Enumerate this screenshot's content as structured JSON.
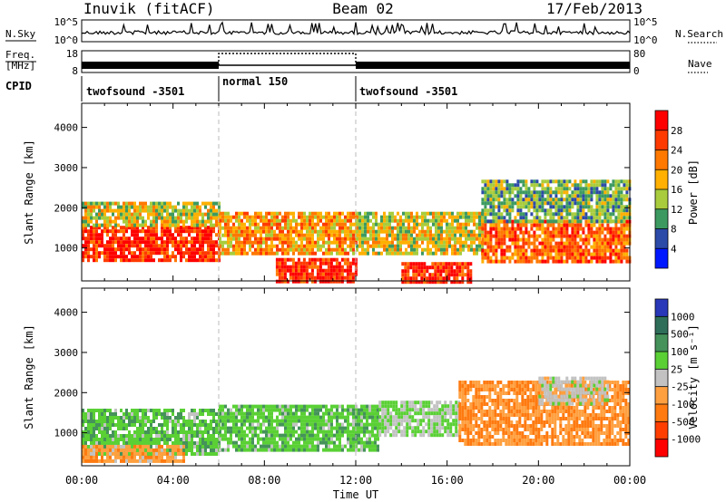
{
  "header": {
    "station": "Inuvik (fitACF)",
    "beam": "Beam 02",
    "date": "17/Feb/2013"
  },
  "panels": {
    "nsky": {
      "label": "N.Sky",
      "right_label": "N.Search",
      "ticks_left": [
        "10^5",
        "10^0"
      ],
      "ticks_right": [
        "10^5",
        "10^0"
      ]
    },
    "freq": {
      "label_line1": "Freq.",
      "label_line2": "[MHz]",
      "right_label": "Nave",
      "ticks_left": [
        "18",
        "8"
      ],
      "ticks_right": [
        "80",
        "0"
      ]
    },
    "cpid": {
      "label": "CPID",
      "segments": [
        {
          "name": "twofsound -3501",
          "start": 0,
          "end": 6
        },
        {
          "name": "normal 150",
          "start": 6,
          "end": 12
        },
        {
          "name": "twofsound -3501",
          "start": 12,
          "end": 24
        }
      ]
    }
  },
  "time_axis": {
    "label": "Time UT",
    "ticks": [
      "00:00",
      "04:00",
      "08:00",
      "12:00",
      "16:00",
      "20:00",
      "00:00"
    ]
  },
  "chart_data": [
    {
      "type": "heatmap",
      "quantity": "power",
      "ylabel": "Slant Range [km]",
      "y_ticks": [
        1000,
        2000,
        3000,
        4000
      ],
      "ylim": [
        180,
        4600
      ],
      "xlim": [
        0,
        24
      ],
      "colorbar": {
        "label": "Power [dB]",
        "tick_labels": [
          "28",
          "24",
          "20",
          "16",
          "12",
          "8",
          "4"
        ],
        "colors": [
          "#ff0000",
          "#ff3a00",
          "#ff7800",
          "#ffb000",
          "#a8cc3c",
          "#3c9a60",
          "#2c4aa8",
          "#0018ff"
        ],
        "range": [
          0,
          32
        ]
      },
      "regions": [
        {
          "t": [
            0.0,
            6.0
          ],
          "r": [
            650,
            1550
          ],
          "level": 28
        },
        {
          "t": [
            0.0,
            6.0
          ],
          "r": [
            1550,
            2150
          ],
          "level": 16
        },
        {
          "t": [
            6.0,
            12.0
          ],
          "r": [
            900,
            1900
          ],
          "level": 20
        },
        {
          "t": [
            8.5,
            12.0
          ],
          "r": [
            180,
            750
          ],
          "level": 28
        },
        {
          "t": [
            12.0,
            17.5
          ],
          "r": [
            900,
            1900
          ],
          "level": 16
        },
        {
          "t": [
            14.0,
            17.0
          ],
          "r": [
            180,
            650
          ],
          "level": 28
        },
        {
          "t": [
            17.5,
            24.0
          ],
          "r": [
            700,
            1700
          ],
          "level": 24
        },
        {
          "t": [
            17.5,
            24.0
          ],
          "r": [
            1700,
            2700
          ],
          "level": 12
        }
      ]
    },
    {
      "type": "heatmap",
      "quantity": "velocity",
      "ylabel": "Slant Range [km]",
      "y_ticks": [
        1000,
        2000,
        3000,
        4000
      ],
      "ylim": [
        180,
        4600
      ],
      "xlim": [
        0,
        24
      ],
      "colorbar": {
        "label": "Velocity [m s⁻¹]",
        "tick_labels": [
          "1000",
          "500",
          "100",
          "25",
          "-25",
          "-100",
          "-500",
          "-1000"
        ],
        "colors": [
          "#2838b8",
          "#2f6f5a",
          "#45925a",
          "#5ad035",
          "#c2c2c2",
          "#ffa040",
          "#ff7a10",
          "#ff3e00",
          "#ff0000"
        ],
        "range": [
          -1200,
          1200
        ]
      },
      "regions": [
        {
          "t": [
            0.0,
            6.0
          ],
          "r": [
            500,
            1600
          ],
          "level": 300
        },
        {
          "t": [
            0.0,
            4.5
          ],
          "r": [
            300,
            700
          ],
          "level": -300
        },
        {
          "t": [
            6.0,
            13.0
          ],
          "r": [
            600,
            1700
          ],
          "level": 300
        },
        {
          "t": [
            13.0,
            16.5
          ],
          "r": [
            900,
            1800
          ],
          "level": 150
        },
        {
          "t": [
            16.5,
            24.0
          ],
          "r": [
            700,
            2300
          ],
          "level": -400
        },
        {
          "t": [
            20.0,
            23.0
          ],
          "r": [
            1700,
            2400
          ],
          "level": 0
        }
      ]
    }
  ]
}
